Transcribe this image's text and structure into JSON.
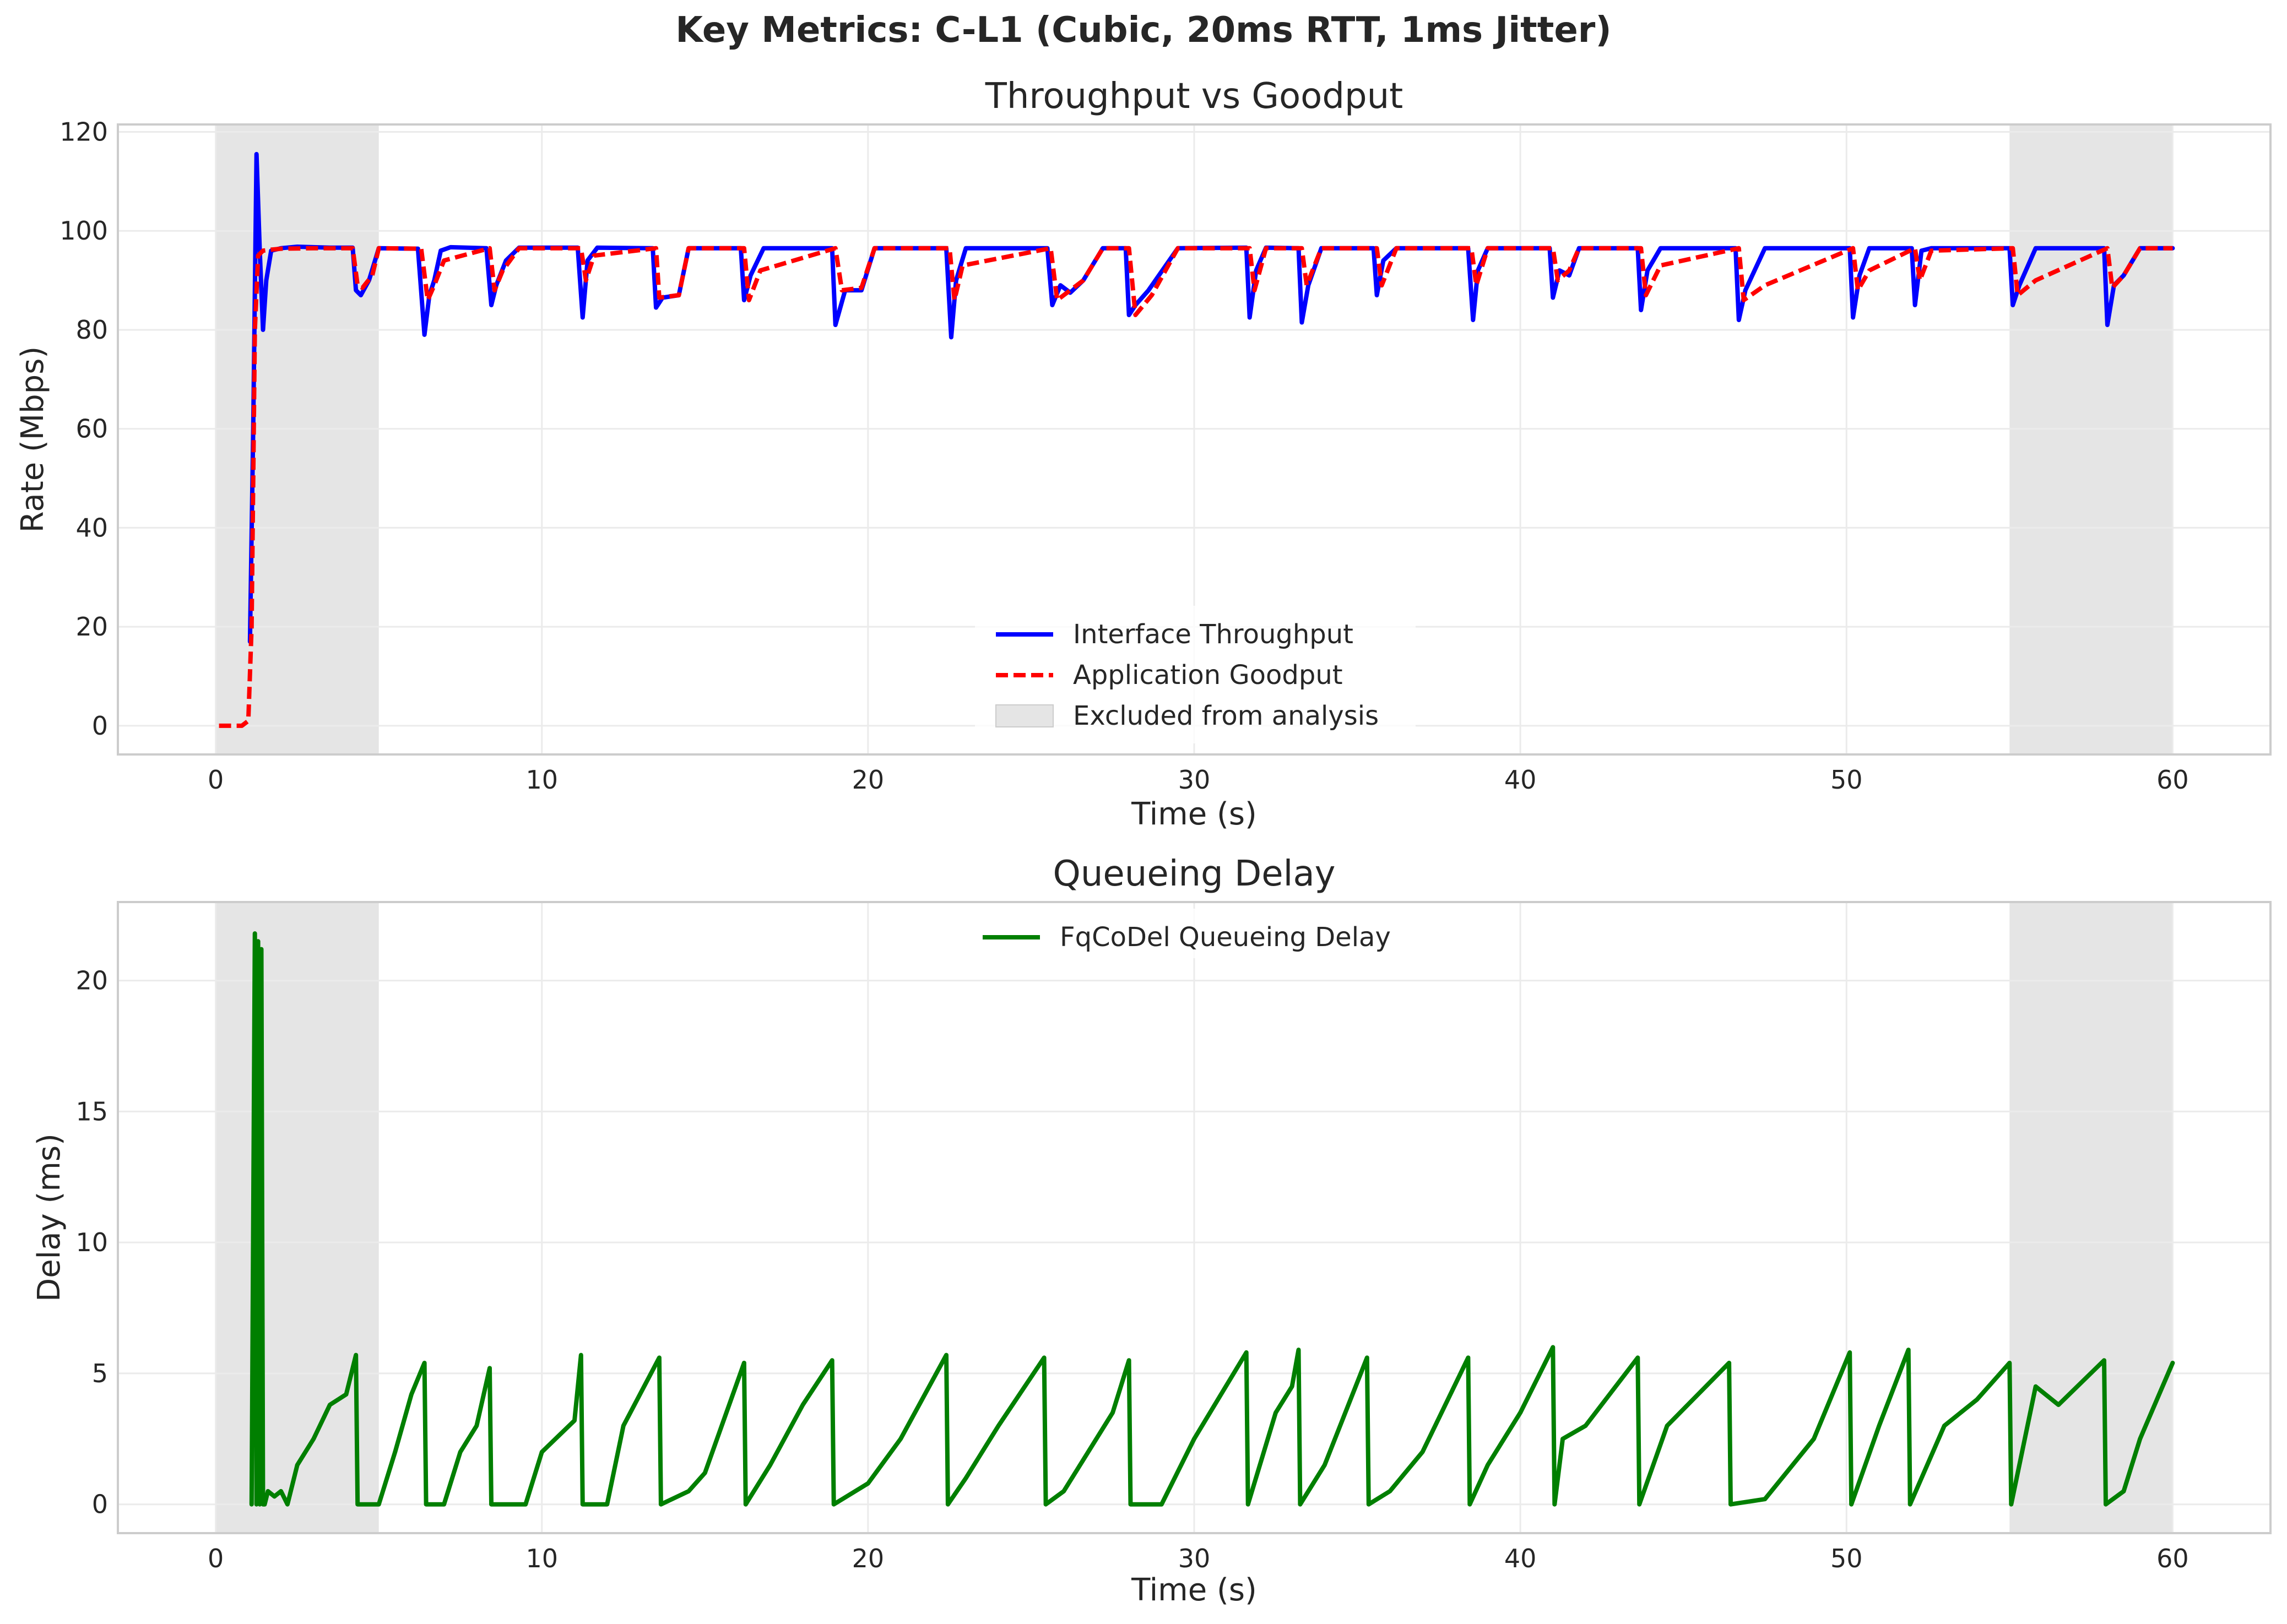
{
  "figure": {
    "title": "Key Metrics: C-L1 (Cubic, 20ms RTT, 1ms Jitter)"
  },
  "chart_data": [
    {
      "type": "line",
      "title": "Throughput vs Goodput",
      "xlabel": "Time (s)",
      "ylabel": "Rate (Mbps)",
      "xlim": [
        -3,
        63
      ],
      "ylim": [
        -5.8,
        121.5
      ],
      "xticks": [
        0,
        10,
        20,
        30,
        40,
        50,
        60
      ],
      "yticks": [
        0,
        20,
        40,
        60,
        80,
        100,
        120
      ],
      "grid": true,
      "legend_position": "lower-center",
      "shaded_regions": [
        {
          "label": "Excluded from analysis",
          "from": 0,
          "to": 5,
          "color": "#e5e5e5"
        },
        {
          "label": "Excluded from analysis",
          "from": 55,
          "to": 60,
          "color": "#e5e5e5"
        }
      ],
      "series": [
        {
          "name": "Interface Throughput",
          "color": "#0000ff",
          "style": "solid",
          "x": [
            1.05,
            1.15,
            1.25,
            1.35,
            1.45,
            1.55,
            1.7,
            2.0,
            2.5,
            3.0,
            3.5,
            4.2,
            4.3,
            4.45,
            4.7,
            5.0,
            6.2,
            6.4,
            6.55,
            6.7,
            6.9,
            7.2,
            8.3,
            8.45,
            8.6,
            8.9,
            9.3,
            11.1,
            11.25,
            11.4,
            11.7,
            13.4,
            13.5,
            13.7,
            14.2,
            14.5,
            16.1,
            16.2,
            16.4,
            16.8,
            18.9,
            19.0,
            19.3,
            19.8,
            20.2,
            22.4,
            22.55,
            22.7,
            23.0,
            25.5,
            25.65,
            25.9,
            26.2,
            26.6,
            27.2,
            27.9,
            28.0,
            28.2,
            28.6,
            29.5,
            31.6,
            31.7,
            31.9,
            32.2,
            33.2,
            33.3,
            33.5,
            33.9,
            35.5,
            35.6,
            35.8,
            36.2,
            38.4,
            38.55,
            38.7,
            39.0,
            40.9,
            41.0,
            41.2,
            41.5,
            41.8,
            43.6,
            43.7,
            43.9,
            44.3,
            46.6,
            46.7,
            46.9,
            47.5,
            50.1,
            50.2,
            50.4,
            50.7,
            52.0,
            52.1,
            52.3,
            52.6,
            55.0,
            55.1,
            55.3,
            55.8,
            57.9,
            58.0,
            58.2,
            58.5,
            59.0,
            60.0
          ],
          "y": [
            17,
            60,
            115.5,
            96,
            80,
            90,
            96,
            96.5,
            96.8,
            96.7,
            96.6,
            96.6,
            88,
            87,
            90,
            96.5,
            96.4,
            79,
            87,
            90,
            96,
            96.7,
            96.5,
            85,
            89,
            94,
            96.6,
            96.6,
            82.5,
            94,
            96.6,
            96.5,
            84.5,
            86.5,
            87,
            96.5,
            96.5,
            86,
            91,
            96.5,
            96.5,
            81,
            88,
            88,
            96.5,
            96.5,
            78.5,
            90,
            96.5,
            96.5,
            85,
            89,
            87.5,
            90,
            96.5,
            96.5,
            83,
            85,
            88,
            96.5,
            96.6,
            82.5,
            92,
            96.6,
            96.5,
            81.5,
            89,
            96.5,
            96.5,
            87,
            94,
            96.5,
            96.5,
            82,
            92,
            96.5,
            96.5,
            86.5,
            92,
            91,
            96.5,
            96.5,
            84,
            92,
            96.5,
            96.5,
            82,
            88,
            96.5,
            96.5,
            82.5,
            91,
            96.5,
            96.5,
            85,
            96,
            96.5,
            96.5,
            85,
            89,
            96.5,
            96.5,
            81,
            89,
            91,
            96.5,
            96.5
          ]
        },
        {
          "name": "Application Goodput",
          "color": "#ff0000",
          "style": "dashed",
          "x": [
            0.1,
            0.8,
            1.0,
            1.1,
            1.2,
            1.3,
            1.45,
            1.7,
            2.0,
            3.0,
            4.2,
            4.35,
            4.5,
            4.8,
            5.0,
            6.3,
            6.5,
            6.7,
            7.0,
            8.4,
            8.55,
            8.8,
            9.3,
            11.2,
            11.35,
            11.6,
            13.5,
            13.6,
            14.2,
            14.5,
            16.2,
            16.35,
            16.7,
            19.0,
            19.2,
            19.8,
            20.2,
            22.5,
            22.65,
            22.9,
            25.6,
            25.8,
            26.2,
            26.6,
            27.2,
            28.0,
            28.2,
            28.7,
            29.5,
            31.7,
            31.85,
            32.2,
            33.3,
            33.45,
            33.9,
            35.6,
            35.75,
            36.2,
            38.5,
            38.65,
            39.0,
            41.0,
            41.15,
            41.5,
            41.8,
            43.7,
            43.85,
            44.3,
            46.7,
            46.85,
            47.5,
            50.2,
            50.35,
            50.7,
            52.1,
            52.25,
            52.6,
            55.1,
            55.25,
            55.8,
            58.0,
            58.15,
            58.5,
            59.0,
            60.0
          ],
          "y": [
            0,
            0,
            1,
            20,
            80,
            95,
            96,
            96.2,
            96.4,
            96.5,
            96.5,
            89,
            88.5,
            91,
            96.5,
            96.4,
            86,
            89,
            94,
            96.5,
            88,
            92,
            96.5,
            96.5,
            90,
            95,
            96.5,
            86.5,
            87,
            96.5,
            96.5,
            86,
            92,
            96.5,
            88,
            88.5,
            96.5,
            96.5,
            86,
            93,
            96.5,
            86,
            88,
            90,
            96.5,
            96.5,
            83,
            87,
            96.5,
            96.5,
            88,
            96.5,
            96.5,
            89,
            96.5,
            96.5,
            89,
            96.5,
            96.5,
            89,
            96.5,
            96.5,
            90,
            92,
            96.5,
            96.5,
            87,
            93,
            96.5,
            86,
            89,
            96.5,
            88,
            92,
            96.5,
            90,
            96,
            96.5,
            87,
            90,
            96.5,
            88.5,
            91,
            96.5,
            96.5
          ]
        }
      ]
    },
    {
      "type": "line",
      "title": "Queueing Delay",
      "xlabel": "Time (s)",
      "ylabel": "Delay (ms)",
      "xlim": [
        -3,
        63
      ],
      "ylim": [
        -1.1,
        23.0
      ],
      "xticks": [
        0,
        10,
        20,
        30,
        40,
        50,
        60
      ],
      "yticks": [
        0,
        5,
        10,
        15,
        20
      ],
      "grid": true,
      "legend_position": "top-center",
      "shaded_regions": [
        {
          "from": 0,
          "to": 5,
          "color": "#e5e5e5"
        },
        {
          "from": 55,
          "to": 60,
          "color": "#e5e5e5"
        }
      ],
      "series": [
        {
          "name": "FqCoDel Queueing Delay",
          "color": "#007f00",
          "style": "solid",
          "x": [
            1.1,
            1.2,
            1.25,
            1.3,
            1.35,
            1.4,
            1.45,
            1.5,
            1.6,
            1.8,
            2.0,
            2.2,
            2.5,
            3.0,
            3.5,
            4.0,
            4.3,
            4.35,
            4.4,
            5.0,
            5.5,
            6.0,
            6.4,
            6.45,
            7.0,
            7.5,
            8.0,
            8.4,
            8.45,
            9.5,
            10.0,
            11.0,
            11.2,
            11.25,
            12.0,
            12.5,
            13.6,
            13.65,
            14.5,
            15.0,
            16.2,
            16.25,
            17.0,
            18.0,
            18.9,
            18.95,
            20.0,
            21.0,
            22.4,
            22.45,
            23.0,
            24.0,
            25.4,
            25.45,
            26.0,
            27.5,
            28.0,
            28.05,
            29.0,
            30.0,
            31.6,
            31.65,
            32.5,
            33.0,
            33.2,
            33.25,
            34.0,
            35.3,
            35.35,
            36.0,
            37.0,
            38.4,
            38.45,
            39.0,
            40.0,
            41.0,
            41.05,
            41.3,
            42.0,
            43.6,
            43.65,
            44.5,
            46.4,
            46.45,
            47.5,
            49.0,
            50.1,
            50.15,
            51.0,
            51.9,
            51.95,
            53.0,
            54.0,
            55.0,
            55.05,
            55.8,
            56.5,
            57.9,
            57.95,
            58.5,
            59.0,
            60.0
          ],
          "y": [
            0,
            21.8,
            0,
            21.5,
            0,
            21.2,
            0,
            0,
            0.5,
            0.3,
            0.5,
            0,
            1.5,
            2.5,
            3.8,
            4.2,
            5.7,
            0,
            0,
            0,
            2.0,
            4.2,
            5.4,
            0,
            0,
            2.0,
            3.0,
            5.2,
            0,
            0,
            2.0,
            3.2,
            5.7,
            0,
            0,
            3.0,
            5.6,
            0,
            0.5,
            1.2,
            5.4,
            0,
            1.5,
            3.8,
            5.5,
            0,
            0.8,
            2.5,
            5.7,
            0,
            1.0,
            3.0,
            5.6,
            0,
            0.5,
            3.5,
            5.5,
            0,
            0,
            2.5,
            5.8,
            0,
            3.5,
            4.5,
            5.9,
            0,
            1.5,
            5.6,
            0,
            0.5,
            2.0,
            5.6,
            0,
            1.5,
            3.5,
            6.0,
            0,
            2.5,
            3.0,
            5.6,
            0,
            3.0,
            5.4,
            0,
            0.2,
            2.5,
            5.8,
            0,
            3.0,
            5.9,
            0,
            3.0,
            4.0,
            5.4,
            0,
            4.5,
            3.8,
            5.5,
            0,
            0.5,
            2.5,
            5.4
          ]
        }
      ]
    }
  ]
}
